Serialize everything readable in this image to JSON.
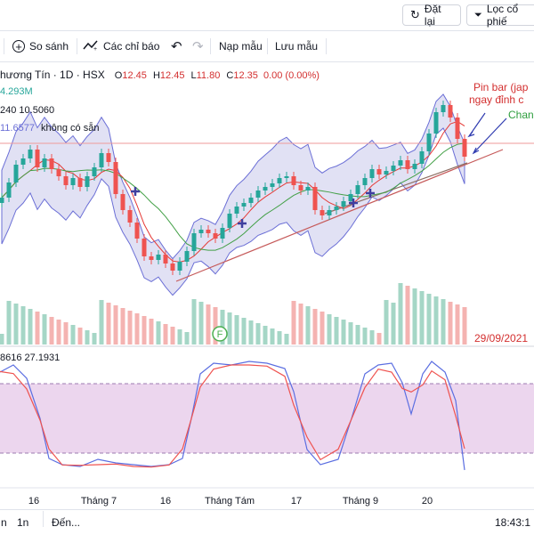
{
  "topbar": {
    "reset_label": "Đặt lại",
    "filter_label": "Lọc cổ phiế"
  },
  "toolbar": {
    "compare_label": "So sánh",
    "indicators_label": "Các chỉ báo",
    "templates_label": "Nạp mẫu",
    "save_template_label": "Lưu mẫu"
  },
  "legend": {
    "symbol": "hương Tín · 1D · HSX",
    "open_label": "O",
    "open": "12.45",
    "high_label": "H",
    "high": "12.45",
    "low_label": "L",
    "low": "11.80",
    "close_label": "C",
    "close": "12.35",
    "change": "0.00 (0.00%)",
    "volume": "4.293M",
    "ma_values": "240  10.5060",
    "bb_values": "11.6577",
    "bb_unavailable": "không có sẵn",
    "stoch_values": "8616  27.1931"
  },
  "annotations": {
    "pin_bar_line1": "Pin bar (jap",
    "pin_bar_line2": "ngay đỉnh c",
    "chan_label": "Chan"
  },
  "date_badge": "29/09/2021",
  "f_badge": "F",
  "x_axis": {
    "labels": [
      "16",
      "Tháng 7",
      "16",
      "Tháng Tám",
      "17",
      "Tháng 9",
      "20"
    ]
  },
  "bottombar": {
    "range_a": "n",
    "range_b": "1n",
    "range_goto": "Đến...",
    "clock": "18:43:1"
  },
  "colors": {
    "up": "#26a69a",
    "down": "#ef5350",
    "bb_fill": "#dcdcf2",
    "stoch_band": "#e6c8e8",
    "k_line": "#5b6ee1",
    "d_line": "#ef5350",
    "accent_text": "#d32f2f",
    "green_text": "#2e9e3e"
  }
}
